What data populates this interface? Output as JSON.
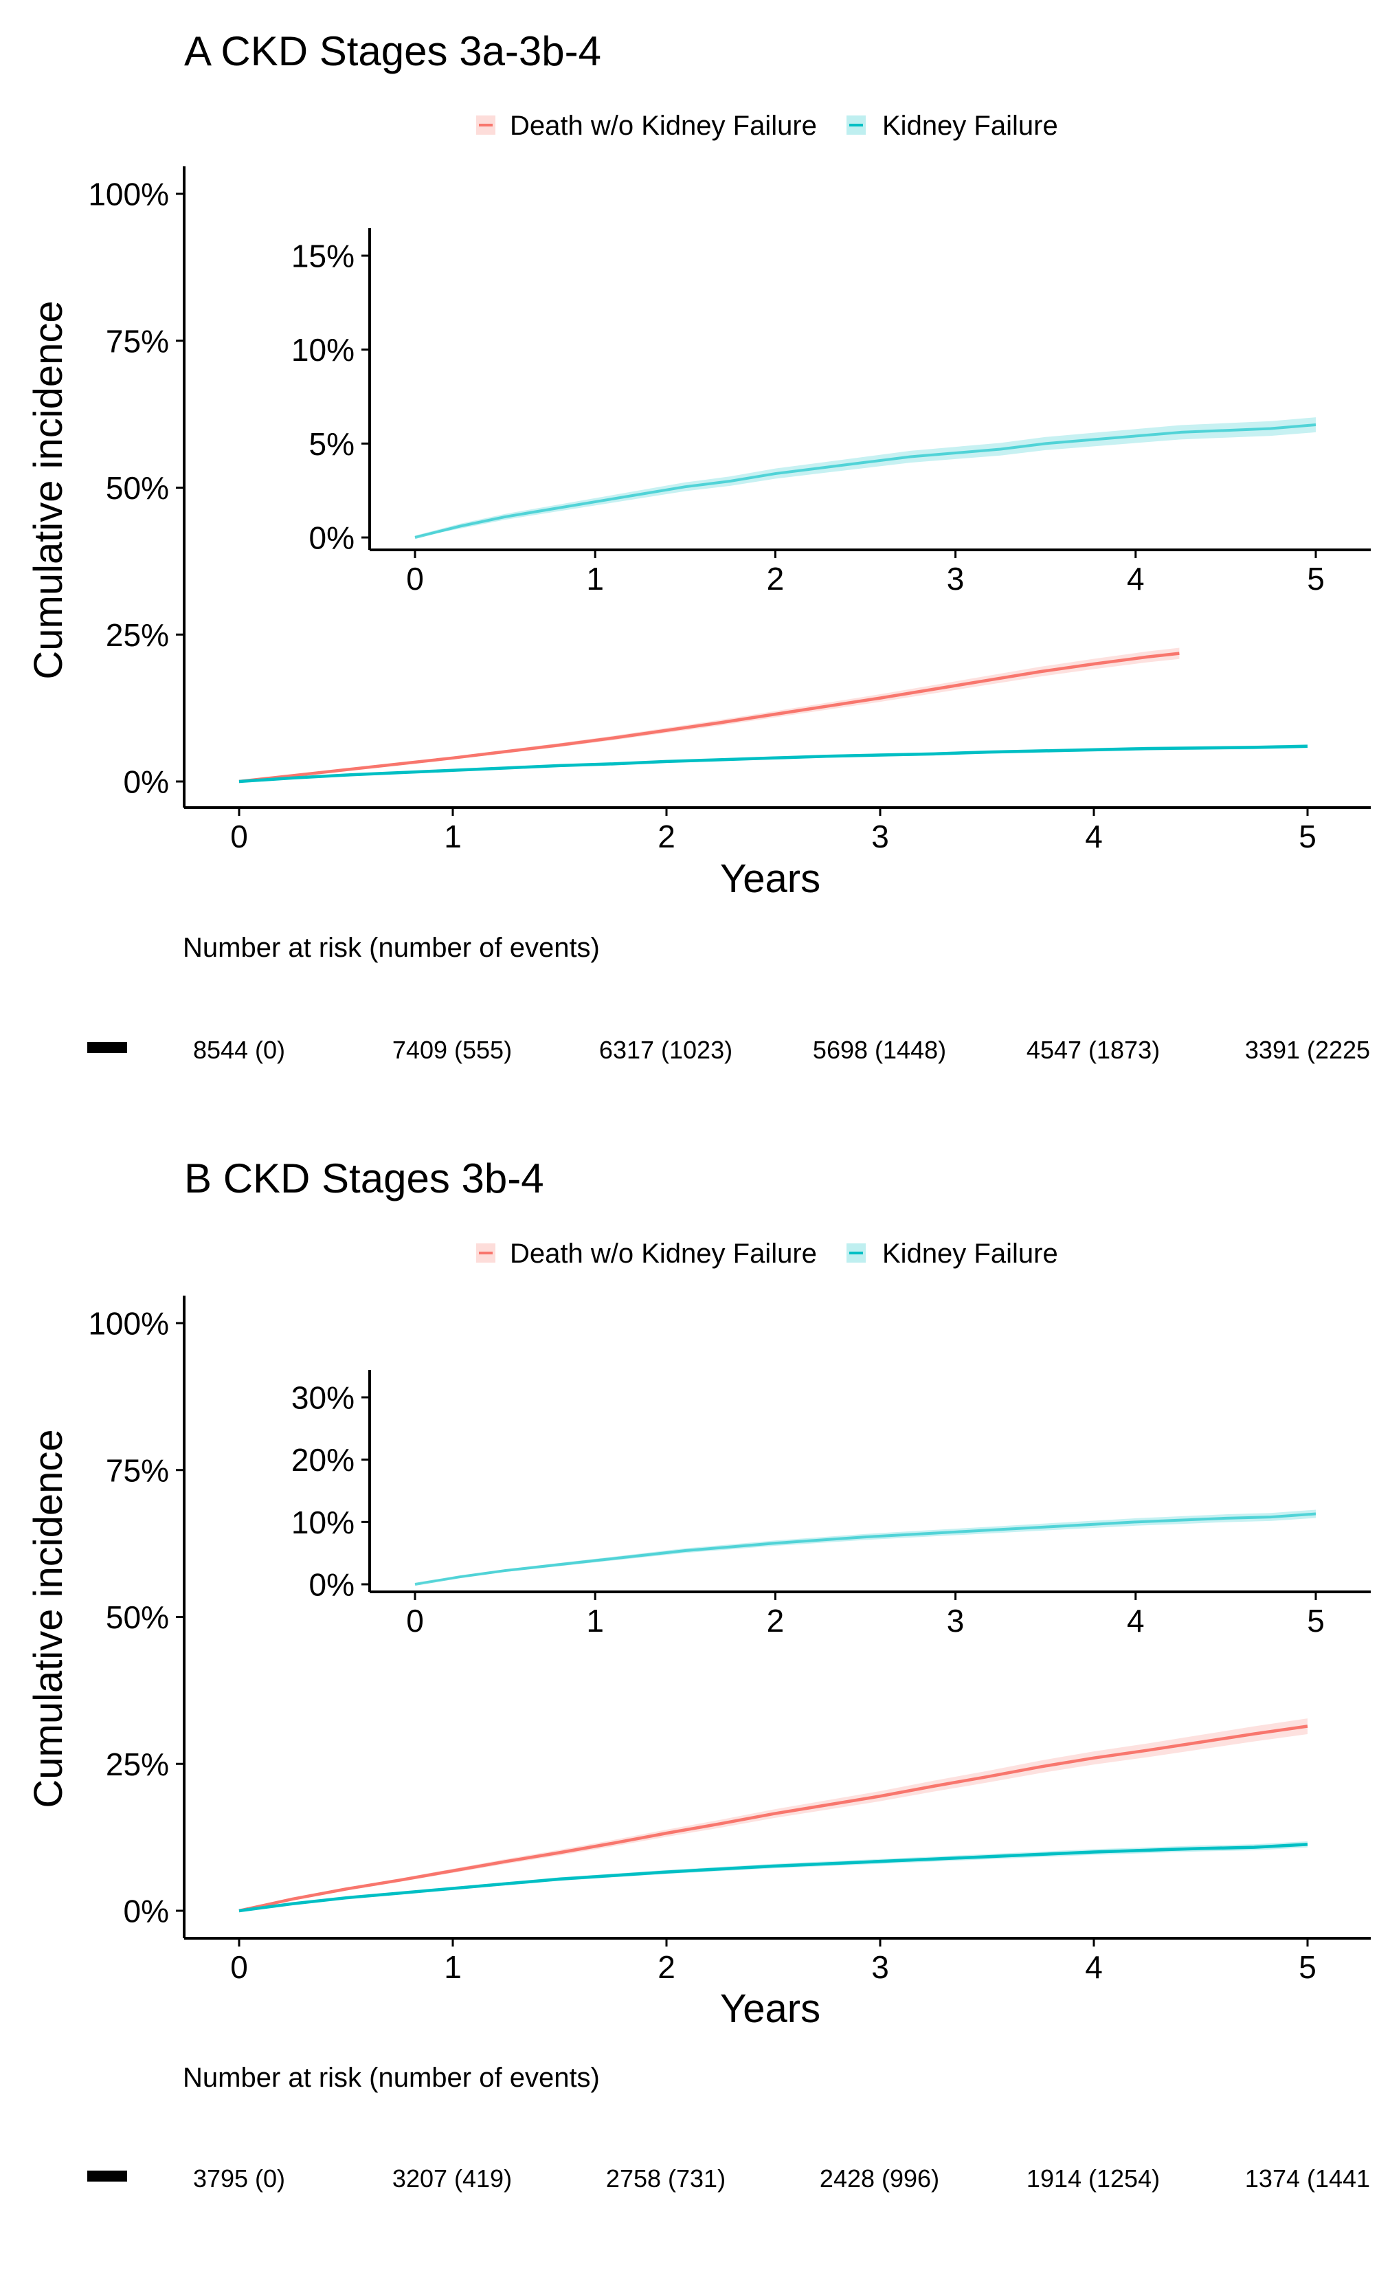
{
  "chart_data": [
    {
      "type": "line",
      "title": "A CKD Stages 3a-3b-4",
      "xlabel": "Years",
      "ylabel": "Cumulative incidence",
      "xlim": [
        0,
        5
      ],
      "ylim": [
        0,
        1
      ],
      "x_ticks": [
        "0",
        "1",
        "2",
        "3",
        "4",
        "5"
      ],
      "y_ticks": [
        "0%",
        "25%",
        "50%",
        "75%",
        "100%"
      ],
      "legend": {
        "position": "top",
        "entries": [
          "Death w/o Kidney Failure",
          "Kidney Failure"
        ]
      },
      "colors": {
        "death": "#F8766D",
        "kidney": "#00BFC4"
      },
      "grid": false,
      "series": [
        {
          "name": "Death w/o Kidney Failure",
          "color": "#F8766D",
          "x": [
            0,
            0.25,
            0.5,
            0.75,
            1,
            1.25,
            1.5,
            1.75,
            2,
            2.25,
            2.5,
            2.75,
            3,
            3.25,
            3.5,
            3.75,
            4,
            4.25,
            4.4
          ],
          "y": [
            0,
            0.01,
            0.02,
            0.03,
            0.04,
            0.051,
            0.062,
            0.074,
            0.087,
            0.1,
            0.114,
            0.128,
            0.142,
            0.157,
            0.172,
            0.187,
            0.2,
            0.212,
            0.218
          ]
        },
        {
          "name": "Kidney Failure",
          "color": "#00BFC4",
          "x": [
            0,
            0.25,
            0.5,
            0.75,
            1,
            1.25,
            1.5,
            1.75,
            2,
            2.25,
            2.5,
            2.75,
            3,
            3.25,
            3.5,
            3.75,
            4,
            4.25,
            4.5,
            4.75,
            5
          ],
          "y": [
            0,
            0.006,
            0.011,
            0.015,
            0.019,
            0.023,
            0.027,
            0.03,
            0.034,
            0.037,
            0.04,
            0.043,
            0.045,
            0.047,
            0.05,
            0.052,
            0.054,
            0.056,
            0.057,
            0.058,
            0.06
          ]
        }
      ],
      "inset": {
        "xlim": [
          0,
          5
        ],
        "ylim": [
          0,
          0.15
        ],
        "x_ticks": [
          "0",
          "1",
          "2",
          "3",
          "4",
          "5"
        ],
        "y_ticks": [
          "0%",
          "5%",
          "10%",
          "15%"
        ],
        "series_name": "Kidney Failure"
      },
      "risk_table": {
        "title": "Number at risk (number of events)",
        "cells": [
          "8544 (0)",
          "7409 (555)",
          "6317 (1023)",
          "5698 (1448)",
          "4547 (1873)",
          "3391 (2225"
        ]
      }
    },
    {
      "type": "line",
      "title": "B CKD Stages 3b-4",
      "xlabel": "Years",
      "ylabel": "Cumulative incidence",
      "xlim": [
        0,
        5
      ],
      "ylim": [
        0,
        1
      ],
      "x_ticks": [
        "0",
        "1",
        "2",
        "3",
        "4",
        "5"
      ],
      "y_ticks": [
        "0%",
        "25%",
        "50%",
        "75%",
        "100%"
      ],
      "legend": {
        "position": "top",
        "entries": [
          "Death w/o Kidney Failure",
          "Kidney Failure"
        ]
      },
      "colors": {
        "death": "#F8766D",
        "kidney": "#00BFC4"
      },
      "grid": false,
      "series": [
        {
          "name": "Death w/o Kidney Failure",
          "color": "#F8766D",
          "x": [
            0,
            0.25,
            0.5,
            0.75,
            1,
            1.25,
            1.5,
            1.75,
            2,
            2.25,
            2.5,
            2.75,
            3,
            3.25,
            3.5,
            3.75,
            4,
            4.25,
            4.5,
            4.75,
            5
          ],
          "y": [
            0,
            0.02,
            0.037,
            0.052,
            0.068,
            0.084,
            0.099,
            0.115,
            0.132,
            0.148,
            0.165,
            0.18,
            0.195,
            0.212,
            0.228,
            0.245,
            0.26,
            0.273,
            0.287,
            0.301,
            0.314
          ]
        },
        {
          "name": "Kidney Failure",
          "color": "#00BFC4",
          "x": [
            0,
            0.25,
            0.5,
            0.75,
            1,
            1.25,
            1.5,
            1.75,
            2,
            2.25,
            2.5,
            2.75,
            3,
            3.25,
            3.5,
            3.75,
            4,
            4.25,
            4.5,
            4.75,
            5
          ],
          "y": [
            0,
            0.012,
            0.022,
            0.03,
            0.038,
            0.046,
            0.054,
            0.06,
            0.066,
            0.071,
            0.076,
            0.08,
            0.084,
            0.088,
            0.092,
            0.096,
            0.1,
            0.103,
            0.106,
            0.108,
            0.113
          ]
        }
      ],
      "inset": {
        "xlim": [
          0,
          5
        ],
        "ylim": [
          0,
          0.3
        ],
        "x_ticks": [
          "0",
          "1",
          "2",
          "3",
          "4",
          "5"
        ],
        "y_ticks": [
          "0%",
          "10%",
          "20%",
          "30%"
        ],
        "series_name": "Kidney Failure"
      },
      "risk_table": {
        "title": "Number at risk (number of events)",
        "cells": [
          "3795 (0)",
          "3207 (419)",
          "2758 (731)",
          "2428 (996)",
          "1914 (1254)",
          "1374 (1441"
        ]
      }
    }
  ]
}
